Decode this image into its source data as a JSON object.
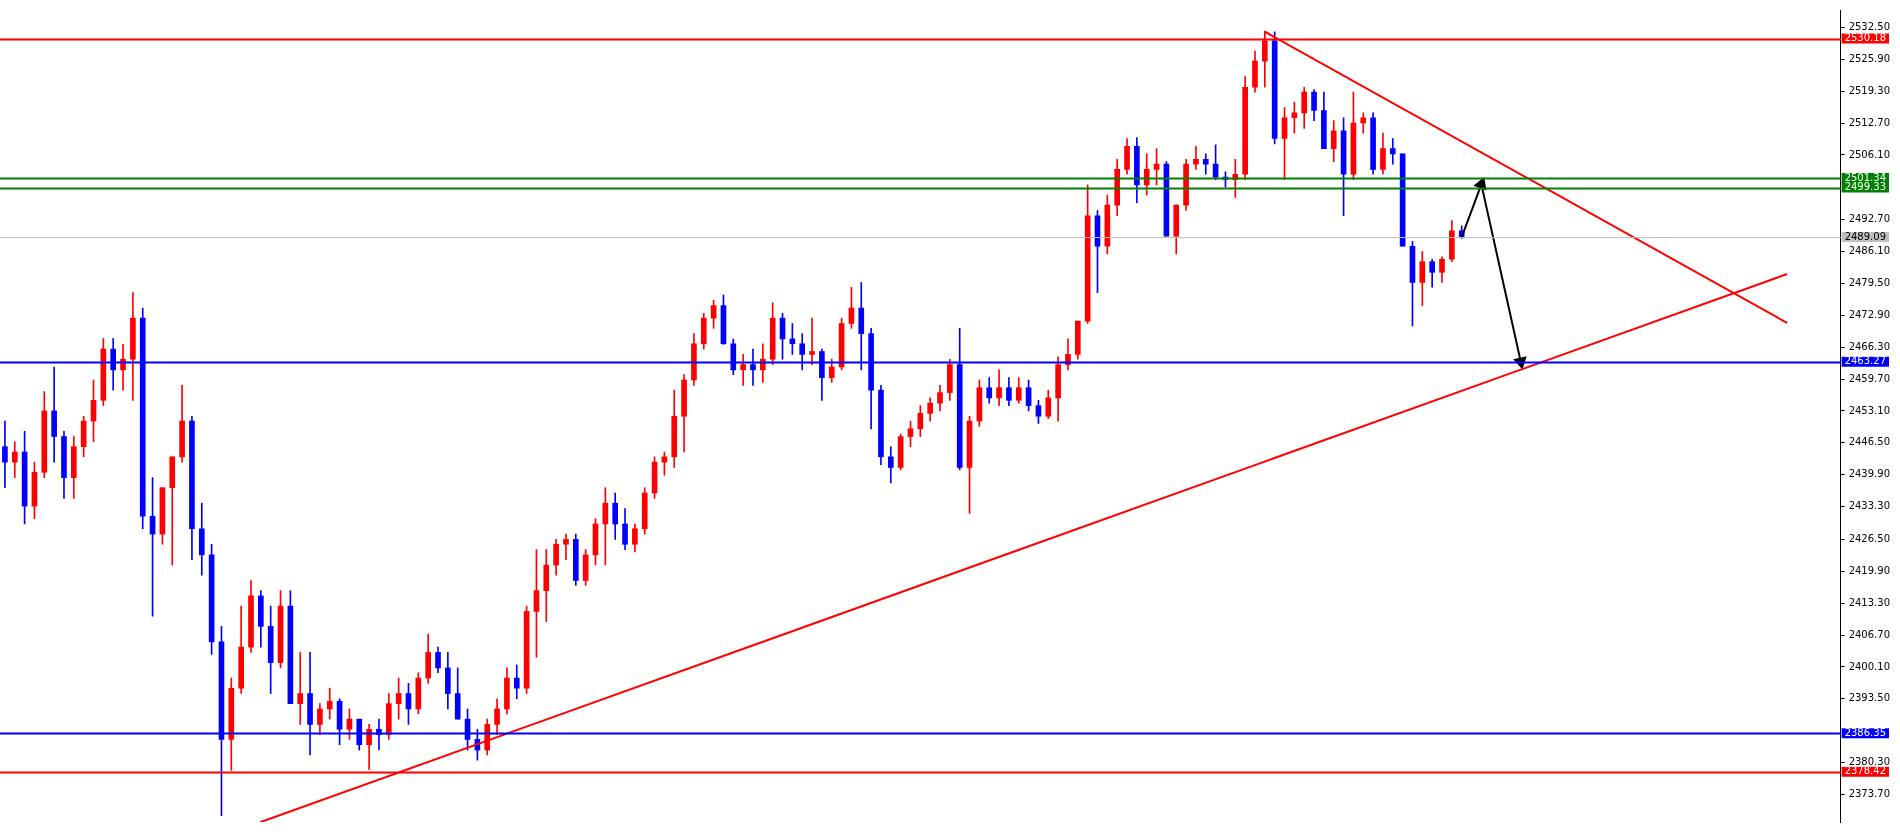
{
  "chart_data": {
    "type": "candlestick",
    "categories": [
      null,
      null,
      null,
      null,
      null,
      null,
      null,
      null,
      null,
      null,
      null,
      null,
      null,
      null,
      null,
      null,
      null,
      null,
      null,
      null,
      null,
      null,
      null,
      null,
      null,
      null,
      null,
      null,
      null,
      null,
      null,
      null,
      null,
      null,
      null,
      null,
      null,
      null,
      null,
      null,
      null,
      null,
      null,
      null,
      null,
      null,
      null,
      null,
      null,
      null,
      null,
      null,
      null,
      null,
      null,
      null,
      null,
      null,
      null,
      null,
      null,
      null,
      null,
      null,
      null,
      null,
      null,
      null,
      null,
      null,
      null,
      null,
      null,
      null,
      null,
      null,
      null,
      null,
      null,
      null,
      null,
      null,
      null,
      null,
      null,
      null,
      null,
      null,
      null,
      null,
      null,
      null,
      null,
      null,
      null,
      null,
      null,
      null,
      null,
      null,
      null,
      null,
      null,
      null,
      null,
      null,
      null,
      null,
      null,
      null,
      null,
      null,
      null,
      null,
      null,
      null,
      null,
      null,
      null,
      null,
      null,
      null,
      null,
      null,
      null,
      null,
      null,
      null,
      null,
      null,
      null,
      null,
      null,
      null,
      null,
      null,
      null,
      null,
      null,
      null,
      null,
      null,
      null,
      null,
      null,
      null,
      null,
      null,
      null,
      null,
      null,
      null,
      null,
      null,
      null,
      null,
      null,
      null,
      null,
      null,
      null,
      null,
      null,
      null,
      null,
      null,
      null,
      null,
      null,
      null,
      null,
      null,
      null,
      null,
      null,
      null,
      null,
      null,
      null,
      null,
      null,
      null,
      null,
      null,
      null,
      null,
      null
    ],
    "ylim": [
      2368.0,
      2536.1
    ],
    "yticks": [
      {
        "value": 2373.7,
        "label": "2373.70"
      },
      {
        "value": 2380.3,
        "label": "2380.30"
      },
      {
        "value": 2393.5,
        "label": "2393.50"
      },
      {
        "value": 2400.1,
        "label": "2400.10"
      },
      {
        "value": 2406.7,
        "label": "2406.70"
      },
      {
        "value": 2413.3,
        "label": "2413.30"
      },
      {
        "value": 2419.9,
        "label": "2419.90"
      },
      {
        "value": 2426.5,
        "label": "2426.50"
      },
      {
        "value": 2433.3,
        "label": "2433.30"
      },
      {
        "value": 2439.9,
        "label": "2439.90"
      },
      {
        "value": 2446.5,
        "label": "2446.50"
      },
      {
        "value": 2453.1,
        "label": "2453.10"
      },
      {
        "value": 2459.7,
        "label": "2459.70"
      },
      {
        "value": 2466.3,
        "label": "2466.30"
      },
      {
        "value": 2472.9,
        "label": "2472.90"
      },
      {
        "value": 2479.5,
        "label": "2479.50"
      },
      {
        "value": 2486.1,
        "label": "2486.10"
      },
      {
        "value": 2492.7,
        "label": "2492.70"
      },
      {
        "value": 2506.1,
        "label": "2506.10"
      },
      {
        "value": 2512.7,
        "label": "2512.70"
      },
      {
        "value": 2519.3,
        "label": "2519.30"
      },
      {
        "value": 2525.9,
        "label": "2525.90"
      },
      {
        "value": 2532.5,
        "label": "2532.50"
      }
    ],
    "tick_labels": "y",
    "series": [
      {
        "type": "candlestick",
        "ohlc": [
          [
            2445.7,
            2451.0,
            2437.2,
            2442.5
          ],
          [
            2442.5,
            2446.7,
            2439.3,
            2444.6
          ],
          [
            2444.6,
            2448.9,
            2429.7,
            2433.4
          ],
          [
            2433.4,
            2442.5,
            2430.8,
            2440.4
          ],
          [
            2440.4,
            2457.1,
            2439.3,
            2453.1
          ],
          [
            2453.1,
            2462.2,
            2442.5,
            2447.8
          ],
          [
            2447.8,
            2448.9,
            2435.0,
            2439.3
          ],
          [
            2439.3,
            2447.8,
            2435.0,
            2445.7
          ],
          [
            2445.7,
            2452.0,
            2443.6,
            2451.0
          ],
          [
            2451.0,
            2459.5,
            2446.7,
            2455.3
          ],
          [
            2455.3,
            2468.1,
            2454.2,
            2465.9
          ],
          [
            2465.9,
            2468.1,
            2457.4,
            2461.6
          ],
          [
            2461.6,
            2466.9,
            2457.4,
            2463.8
          ],
          [
            2463.8,
            2477.6,
            2455.3,
            2472.3
          ],
          [
            2472.3,
            2474.4,
            2428.7,
            2431.3
          ],
          [
            2431.3,
            2439.3,
            2410.6,
            2427.6
          ],
          [
            2427.6,
            2437.2,
            2425.5,
            2437.2
          ],
          [
            2437.2,
            2443.6,
            2421.2,
            2443.6
          ],
          [
            2443.6,
            2458.4,
            2442.5,
            2451.0
          ],
          [
            2451.0,
            2452.0,
            2422.3,
            2428.7
          ],
          [
            2428.7,
            2434.0,
            2419.1,
            2423.3
          ],
          [
            2423.3,
            2425.5,
            2402.7,
            2405.3
          ],
          [
            2405.3,
            2408.5,
            2369.3,
            2385.1
          ],
          [
            2385.1,
            2397.8,
            2378.7,
            2395.7
          ],
          [
            2395.7,
            2412.7,
            2394.6,
            2404.2
          ],
          [
            2404.2,
            2418.0,
            2403.1,
            2414.8
          ],
          [
            2414.8,
            2415.9,
            2404.2,
            2408.5
          ],
          [
            2408.5,
            2412.7,
            2394.6,
            2401.0
          ],
          [
            2401.0,
            2415.9,
            2399.9,
            2412.7
          ],
          [
            2412.7,
            2415.9,
            2392.5,
            2392.5
          ],
          [
            2392.5,
            2403.1,
            2388.2,
            2394.6
          ],
          [
            2394.6,
            2403.1,
            2381.9,
            2388.2
          ],
          [
            2388.2,
            2392.5,
            2386.1,
            2391.4
          ],
          [
            2391.4,
            2395.7,
            2389.3,
            2393.0
          ],
          [
            2393.0,
            2393.5,
            2384.0,
            2387.2
          ],
          [
            2387.2,
            2391.4,
            2385.1,
            2389.3
          ],
          [
            2389.3,
            2389.3,
            2382.9,
            2384.0
          ],
          [
            2384.0,
            2388.2,
            2378.9,
            2387.2
          ],
          [
            2387.2,
            2389.3,
            2382.9,
            2386.1
          ],
          [
            2386.1,
            2394.6,
            2385.1,
            2392.5
          ],
          [
            2392.5,
            2397.8,
            2389.3,
            2394.6
          ],
          [
            2394.6,
            2396.7,
            2388.2,
            2391.4
          ],
          [
            2391.4,
            2398.9,
            2390.4,
            2397.8
          ],
          [
            2397.8,
            2406.9,
            2396.7,
            2403.1
          ],
          [
            2403.1,
            2404.2,
            2398.9,
            2399.9
          ],
          [
            2399.9,
            2403.1,
            2391.4,
            2394.6
          ],
          [
            2394.6,
            2399.9,
            2389.3,
            2389.3
          ],
          [
            2389.3,
            2391.4,
            2382.9,
            2385.1
          ],
          [
            2385.1,
            2387.2,
            2380.8,
            2382.9
          ],
          [
            2382.9,
            2389.3,
            2381.9,
            2388.2
          ],
          [
            2388.2,
            2393.5,
            2386.1,
            2391.4
          ],
          [
            2391.4,
            2399.9,
            2390.4,
            2397.8
          ],
          [
            2397.8,
            2400.5,
            2393.5,
            2395.7
          ],
          [
            2395.7,
            2412.7,
            2394.6,
            2411.6
          ],
          [
            2411.6,
            2424.4,
            2402.1,
            2415.9
          ],
          [
            2415.9,
            2424.4,
            2409.5,
            2421.2
          ],
          [
            2421.2,
            2426.5,
            2419.1,
            2425.5
          ],
          [
            2425.5,
            2427.6,
            2422.3,
            2426.5
          ],
          [
            2426.5,
            2427.6,
            2417.0,
            2418.0
          ],
          [
            2418.0,
            2424.4,
            2417.0,
            2423.3
          ],
          [
            2423.3,
            2430.8,
            2421.2,
            2429.7
          ],
          [
            2429.7,
            2437.2,
            2421.2,
            2434.0
          ],
          [
            2434.0,
            2436.1,
            2426.5,
            2429.7
          ],
          [
            2429.7,
            2432.9,
            2424.4,
            2425.5
          ],
          [
            2425.5,
            2429.7,
            2423.9,
            2428.7
          ],
          [
            2428.7,
            2437.2,
            2427.6,
            2436.1
          ],
          [
            2436.1,
            2443.6,
            2435.0,
            2442.5
          ],
          [
            2442.5,
            2444.6,
            2439.8,
            2443.6
          ],
          [
            2443.6,
            2457.4,
            2441.4,
            2452.0
          ],
          [
            2452.0,
            2460.6,
            2444.6,
            2459.5
          ],
          [
            2459.5,
            2469.1,
            2458.4,
            2467.0
          ],
          [
            2467.0,
            2473.3,
            2465.9,
            2472.3
          ],
          [
            2472.3,
            2476.0,
            2470.2,
            2474.9
          ],
          [
            2474.9,
            2477.1,
            2466.9,
            2467.0
          ],
          [
            2467.0,
            2468.0,
            2460.6,
            2461.6
          ],
          [
            2461.6,
            2464.8,
            2458.4,
            2462.7
          ],
          [
            2462.7,
            2465.9,
            2458.4,
            2461.6
          ],
          [
            2461.6,
            2467.0,
            2459.0,
            2463.8
          ],
          [
            2463.8,
            2475.5,
            2462.7,
            2472.3
          ],
          [
            2472.3,
            2473.3,
            2463.8,
            2468.0
          ],
          [
            2468.0,
            2471.2,
            2464.8,
            2467.0
          ],
          [
            2467.0,
            2469.1,
            2461.6,
            2464.8
          ],
          [
            2464.8,
            2472.3,
            2462.7,
            2465.4
          ],
          [
            2465.4,
            2465.9,
            2455.3,
            2460.0
          ],
          [
            2460.0,
            2463.8,
            2459.0,
            2462.2
          ],
          [
            2462.2,
            2472.3,
            2461.6,
            2471.2
          ],
          [
            2471.2,
            2478.7,
            2470.2,
            2474.4
          ],
          [
            2474.4,
            2479.7,
            2461.6,
            2469.1
          ],
          [
            2469.1,
            2470.2,
            2449.4,
            2457.4
          ],
          [
            2457.4,
            2458.4,
            2442.0,
            2443.6
          ],
          [
            2443.6,
            2445.7,
            2438.2,
            2441.4
          ],
          [
            2441.4,
            2448.3,
            2440.9,
            2447.8
          ],
          [
            2447.8,
            2451.0,
            2445.7,
            2449.4
          ],
          [
            2449.4,
            2454.2,
            2447.8,
            2452.6
          ],
          [
            2452.6,
            2455.8,
            2451.0,
            2454.7
          ],
          [
            2454.7,
            2458.4,
            2453.1,
            2456.9
          ],
          [
            2456.9,
            2463.8,
            2455.3,
            2462.7
          ],
          [
            2462.7,
            2470.2,
            2440.9,
            2441.4
          ],
          [
            2441.4,
            2452.0,
            2431.9,
            2451.0
          ],
          [
            2451.0,
            2459.5,
            2449.9,
            2457.9
          ],
          [
            2457.9,
            2460.0,
            2454.7,
            2455.8
          ],
          [
            2455.8,
            2461.6,
            2454.2,
            2457.9
          ],
          [
            2457.9,
            2460.0,
            2454.2,
            2455.3
          ],
          [
            2455.3,
            2460.0,
            2454.7,
            2457.9
          ],
          [
            2457.9,
            2459.5,
            2453.1,
            2454.2
          ],
          [
            2454.2,
            2455.3,
            2450.5,
            2452.0
          ],
          [
            2452.0,
            2457.4,
            2451.5,
            2455.8
          ],
          [
            2455.8,
            2464.3,
            2451.0,
            2462.7
          ],
          [
            2462.7,
            2468.0,
            2461.6,
            2464.8
          ],
          [
            2464.8,
            2471.7,
            2463.8,
            2471.7
          ],
          [
            2471.7,
            2499.9,
            2471.2,
            2493.5
          ],
          [
            2493.5,
            2494.6,
            2477.6,
            2487.2
          ],
          [
            2487.2,
            2497.8,
            2485.6,
            2495.7
          ],
          [
            2495.7,
            2505.2,
            2493.5,
            2503.1
          ],
          [
            2503.1,
            2509.5,
            2502.1,
            2507.9
          ],
          [
            2507.9,
            2509.7,
            2496.2,
            2499.9
          ],
          [
            2499.9,
            2506.3,
            2497.8,
            2503.1
          ],
          [
            2503.1,
            2507.4,
            2499.9,
            2504.2
          ],
          [
            2504.2,
            2504.7,
            2489.3,
            2489.3
          ],
          [
            2489.3,
            2495.7,
            2485.6,
            2495.7
          ],
          [
            2495.7,
            2505.2,
            2494.6,
            2504.2
          ],
          [
            2504.2,
            2507.9,
            2503.1,
            2505.2
          ],
          [
            2505.2,
            2506.3,
            2502.1,
            2504.2
          ],
          [
            2504.2,
            2508.2,
            2501.0,
            2501.5
          ],
          [
            2501.5,
            2502.6,
            2499.4,
            2501.0
          ],
          [
            2501.0,
            2505.2,
            2497.3,
            2502.1
          ],
          [
            2502.1,
            2522.3,
            2501.0,
            2520.1
          ],
          [
            2520.1,
            2527.6,
            2519.1,
            2525.5
          ],
          [
            2525.5,
            2531.6,
            2520.1,
            2529.7
          ],
          [
            2529.7,
            2531.6,
            2508.4,
            2509.5
          ],
          [
            2509.5,
            2515.9,
            2501.0,
            2513.8
          ],
          [
            2513.8,
            2517.0,
            2510.6,
            2514.8
          ],
          [
            2514.8,
            2520.1,
            2511.6,
            2519.1
          ],
          [
            2519.1,
            2519.6,
            2513.2,
            2515.3
          ],
          [
            2515.3,
            2519.1,
            2507.4,
            2507.4
          ],
          [
            2507.4,
            2513.2,
            2504.7,
            2511.1
          ],
          [
            2511.1,
            2513.8,
            2493.5,
            2502.1
          ],
          [
            2502.1,
            2519.1,
            2501.0,
            2512.7
          ],
          [
            2512.7,
            2514.8,
            2510.6,
            2513.8
          ],
          [
            2513.8,
            2514.8,
            2502.1,
            2503.1
          ],
          [
            2503.1,
            2510.6,
            2502.1,
            2507.4
          ],
          [
            2507.4,
            2509.5,
            2504.2,
            2506.3
          ],
          [
            2506.3,
            2506.3,
            2487.2,
            2487.2
          ],
          [
            2487.2,
            2488.2,
            2470.7,
            2479.7
          ],
          [
            2479.7,
            2486.1,
            2474.9,
            2484.0
          ],
          [
            2484.0,
            2484.5,
            2478.7,
            2481.8
          ],
          [
            2481.8,
            2485.0,
            2479.7,
            2484.5
          ],
          [
            2484.5,
            2492.5,
            2484.0,
            2490.4
          ],
          [
            2490.4,
            2491.4,
            2488.8,
            2489.2
          ],
          null,
          null,
          null,
          null,
          null,
          null,
          null,
          null,
          null,
          null,
          null,
          null,
          null,
          null,
          null,
          null,
          null,
          null,
          null,
          null,
          null,
          null,
          null,
          null,
          null,
          null,
          null,
          null,
          null,
          null,
          null,
          null,
          null,
          null,
          null,
          null,
          null,
          null
        ],
        "colors": [
          "#0000ff",
          "#ff0000",
          "#0000ff",
          "#ff0000",
          "#ff0000",
          "#0000ff",
          "#0000ff",
          "#ff0000",
          "#ff0000",
          "#ff0000",
          "#ff0000",
          "#0000ff",
          "#ff0000",
          "#ff0000",
          "#0000ff",
          "#0000ff",
          "#ff0000",
          "#ff0000",
          "#ff0000",
          "#0000ff",
          "#0000ff",
          "#0000ff",
          "#0000ff",
          "#ff0000",
          "#ff0000",
          "#ff0000",
          "#0000ff",
          "#0000ff",
          "#ff0000",
          "#0000ff",
          "#ff0000",
          "#0000ff",
          "#ff0000",
          "#ff0000",
          "#0000ff",
          "#ff0000",
          "#0000ff",
          "#ff0000",
          "#0000ff",
          "#ff0000",
          "#ff0000",
          "#0000ff",
          "#ff0000",
          "#ff0000",
          "#0000ff",
          "#0000ff",
          "#0000ff",
          "#0000ff",
          "#0000ff",
          "#ff0000",
          "#ff0000",
          "#ff0000",
          "#0000ff",
          "#ff0000",
          "#ff0000",
          "#ff0000",
          "#ff0000",
          "#ff0000",
          "#0000ff",
          "#ff0000",
          "#ff0000",
          "#ff0000",
          "#0000ff",
          "#0000ff",
          "#ff0000",
          "#ff0000",
          "#ff0000",
          "#ff0000",
          "#ff0000",
          "#ff0000",
          "#ff0000",
          "#ff0000",
          "#ff0000",
          "#0000ff",
          "#0000ff",
          "#ff0000",
          "#0000ff",
          "#ff0000",
          "#ff0000",
          "#0000ff",
          "#0000ff",
          "#0000ff",
          "#ff0000",
          "#0000ff",
          "#ff0000",
          "#ff0000",
          "#ff0000",
          "#0000ff",
          "#0000ff",
          "#0000ff",
          "#0000ff",
          "#ff0000",
          "#ff0000",
          "#ff0000",
          "#ff0000",
          "#ff0000",
          "#ff0000",
          "#0000ff",
          "#ff0000",
          "#ff0000",
          "#0000ff",
          "#ff0000",
          "#0000ff",
          "#ff0000",
          "#0000ff",
          "#0000ff",
          "#ff0000",
          "#ff0000",
          "#ff0000",
          "#ff0000",
          "#ff0000",
          "#0000ff",
          "#ff0000",
          "#ff0000",
          "#ff0000",
          "#0000ff",
          "#ff0000",
          "#ff0000",
          "#0000ff",
          "#ff0000",
          "#ff0000",
          "#ff0000",
          "#0000ff",
          "#0000ff",
          "#0000ff",
          "#ff0000",
          "#ff0000",
          "#ff0000",
          "#ff0000",
          "#0000ff",
          "#ff0000",
          "#ff0000",
          "#ff0000",
          "#0000ff",
          "#0000ff",
          "#ff0000",
          "#0000ff",
          "#ff0000",
          "#ff0000",
          "#0000ff",
          "#ff0000",
          "#0000ff",
          "#0000ff",
          "#0000ff",
          "#ff0000",
          "#0000ff",
          "#ff0000",
          "#ff0000",
          "#0000ff",
          null,
          null,
          null,
          null,
          null,
          null,
          null,
          null,
          null,
          null,
          null,
          null,
          null,
          null,
          null,
          null,
          null,
          null,
          null,
          null,
          null,
          null,
          null,
          null,
          null,
          null,
          null,
          null,
          null,
          null,
          null,
          null,
          null,
          null,
          null,
          null,
          null,
          null
        ]
      },
      {
        "type": "line",
        "color": "#ff0000",
        "values": [
          null,
          null,
          null,
          null,
          null,
          null,
          null,
          null,
          null,
          null,
          null,
          null,
          null,
          null,
          null,
          null,
          null,
          null,
          null,
          null,
          null,
          null,
          null,
          null,
          null,
          null,
          2368.0,
          null,
          null,
          null,
          null,
          null,
          null,
          null,
          null,
          null,
          null,
          null,
          null,
          null,
          null,
          null,
          null,
          null,
          null,
          null,
          null,
          null,
          null,
          null,
          null,
          null,
          null,
          null,
          null,
          null,
          null,
          null,
          null,
          null,
          null,
          null,
          null,
          null,
          null,
          null,
          null,
          null,
          null,
          null,
          null,
          null,
          null,
          null,
          null,
          null,
          null,
          null,
          null,
          null,
          null,
          null,
          null,
          null,
          null,
          null,
          null,
          null,
          null,
          null,
          null,
          null,
          null,
          null,
          null,
          null,
          null,
          null,
          null,
          null,
          null,
          null,
          null,
          null,
          null,
          null,
          null,
          null,
          null,
          null,
          null,
          null,
          null,
          null,
          null,
          null,
          null,
          null,
          null,
          null,
          null,
          null,
          null,
          null,
          null,
          null,
          null,
          null,
          null,
          null,
          null,
          null,
          null,
          null,
          null,
          null,
          null,
          null,
          null,
          null,
          null,
          null,
          null,
          null,
          null,
          null,
          null,
          null,
          null,
          null,
          null,
          null,
          null,
          null,
          null,
          null,
          null,
          null,
          null,
          null,
          null,
          null,
          null,
          null,
          null,
          null,
          null,
          null,
          null,
          null,
          null,
          null,
          null,
          null,
          null,
          null,
          null,
          null,
          null,
          null,
          null,
          2481.4,
          null,
          null,
          null,
          null,
          null
        ]
      },
      {
        "type": "line",
        "color": "#ff0000",
        "values": [
          null,
          null,
          null,
          null,
          null,
          null,
          null,
          null,
          null,
          null,
          null,
          null,
          null,
          null,
          null,
          null,
          null,
          null,
          null,
          null,
          null,
          null,
          null,
          null,
          null,
          null,
          null,
          null,
          null,
          null,
          null,
          null,
          null,
          null,
          null,
          null,
          null,
          null,
          null,
          null,
          null,
          null,
          null,
          null,
          null,
          null,
          null,
          null,
          null,
          null,
          null,
          null,
          null,
          null,
          null,
          null,
          null,
          null,
          null,
          null,
          null,
          null,
          null,
          null,
          null,
          null,
          null,
          null,
          null,
          null,
          null,
          null,
          null,
          null,
          null,
          null,
          null,
          null,
          null,
          null,
          null,
          null,
          null,
          null,
          null,
          null,
          null,
          null,
          null,
          null,
          null,
          null,
          null,
          null,
          null,
          null,
          null,
          null,
          null,
          null,
          null,
          null,
          null,
          null,
          null,
          null,
          null,
          null,
          null,
          null,
          null,
          null,
          null,
          null,
          null,
          null,
          null,
          null,
          null,
          null,
          null,
          null,
          null,
          null,
          null,
          null,
          null,
          null,
          2531.6,
          null,
          null,
          null,
          null,
          null,
          null,
          null,
          null,
          null,
          null,
          null,
          null,
          null,
          null,
          null,
          null,
          null,
          null,
          null,
          null,
          null,
          null,
          null,
          null,
          null,
          null,
          null,
          null,
          null,
          null,
          null,
          null,
          null,
          null,
          null,
          null,
          null,
          null,
          null,
          null,
          null,
          null,
          null,
          null,
          null,
          null,
          null,
          null,
          null,
          null,
          null,
          null,
          2471.4,
          null,
          null,
          null,
          null,
          null
        ]
      },
      {
        "type": "line",
        "color": "#000000",
        "marker": "triangle",
        "values": [
          null,
          null,
          null,
          null,
          null,
          null,
          null,
          null,
          null,
          null,
          null,
          null,
          null,
          null,
          null,
          null,
          null,
          null,
          null,
          null,
          null,
          null,
          null,
          null,
          null,
          null,
          null,
          null,
          null,
          null,
          null,
          null,
          null,
          null,
          null,
          null,
          null,
          null,
          null,
          null,
          null,
          null,
          null,
          null,
          null,
          null,
          null,
          null,
          null,
          null,
          null,
          null,
          null,
          null,
          null,
          null,
          null,
          null,
          null,
          null,
          null,
          null,
          null,
          null,
          null,
          null,
          null,
          null,
          null,
          null,
          null,
          null,
          null,
          null,
          null,
          null,
          null,
          null,
          null,
          null,
          null,
          null,
          null,
          null,
          null,
          null,
          null,
          null,
          null,
          null,
          null,
          null,
          null,
          null,
          null,
          null,
          null,
          null,
          null,
          null,
          null,
          null,
          null,
          null,
          null,
          null,
          null,
          null,
          null,
          null,
          null,
          null,
          null,
          null,
          null,
          null,
          null,
          null,
          null,
          null,
          null,
          null,
          null,
          null,
          null,
          null,
          null,
          null,
          null,
          null,
          null,
          null,
          null,
          null,
          null,
          null,
          null,
          null,
          null,
          null,
          null,
          null,
          null,
          null,
          null,
          null,
          null,
          null,
          2489.1,
          null,
          2500.0,
          null,
          null,
          null,
          2463.3,
          null,
          null,
          null,
          null,
          null,
          null,
          null,
          null,
          null,
          null,
          null,
          null,
          null,
          null,
          null,
          null,
          null,
          null,
          null,
          null,
          null,
          null,
          null,
          null,
          null,
          null,
          null,
          null,
          null,
          null,
          null,
          null
        ]
      }
    ],
    "ref_lines": [
      {
        "axis": "y",
        "value": 2530.18,
        "label": "2530.18",
        "color": "#ff0000"
      },
      {
        "axis": "y",
        "value": 2501.34,
        "label": "2501.34",
        "color": "#008000"
      },
      {
        "axis": "y",
        "value": 2499.33,
        "label": "2499.33",
        "color": "#008000"
      },
      {
        "axis": "y",
        "value": 2489.09,
        "label": "2489.09",
        "color": "#c0c0c0"
      },
      {
        "axis": "y",
        "value": 2463.27,
        "label": "2463.27",
        "color": "#0000ff"
      },
      {
        "axis": "y",
        "value": 2386.35,
        "label": "2386.35",
        "color": "#0000ff"
      },
      {
        "axis": "y",
        "value": 2378.42,
        "label": "2378.42",
        "color": "#ff0000"
      }
    ]
  }
}
